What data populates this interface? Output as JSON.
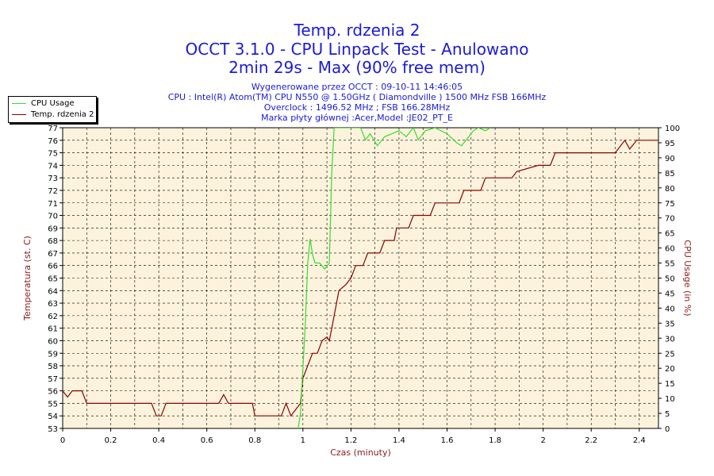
{
  "header": {
    "title1": "Temp. rdzenia 2",
    "title2": "OCCT 3.1.0 - CPU Linpack Test - Anulowano",
    "title3": "2min 29s - Max (90% free mem)",
    "info1": "Wygenerowane przez OCCT : 09-10-11 14:46:05",
    "info2": "CPU : Intel(R) Atom(TM) CPU N550 @ 1.50GHz ( Diamondville ) 1500 MHz FSB 166MHz",
    "info3": "Overclock : 1496.52 MHz ; FSB 166.28MHz",
    "info4": "Marka płyty głównej :Acer,Model :JE02_PT_E"
  },
  "legend": {
    "cpu_usage": "CPU Usage",
    "temp": "Temp. rdzenia 2"
  },
  "colors": {
    "plot_bg": "#fdf3dc",
    "cpu_line": "#33dd33",
    "temp_line": "#8b0000",
    "title": "#1b1bd6",
    "axis_label": "#8b1a1a",
    "grid": "#000000"
  },
  "chart_data": {
    "type": "line",
    "xlabel": "Czas (minuty)",
    "ylabel_left": "Temperatura (st. C)",
    "ylabel_right": "CPU Usage (in %)",
    "xlim": [
      0,
      2.48
    ],
    "ylim_left": [
      53,
      77
    ],
    "ylim_right": [
      0,
      100
    ],
    "x_ticks": [
      "0",
      "0.2",
      "0.4",
      "0.6",
      "0.8",
      "1",
      "1.2",
      "1.4",
      "1.6",
      "1.8",
      "2",
      "2.2",
      "2.4"
    ],
    "y_left_ticks": [
      "53",
      "54",
      "55",
      "56",
      "57",
      "58",
      "59",
      "60",
      "61",
      "62",
      "63",
      "64",
      "65",
      "66",
      "67",
      "68",
      "69",
      "70",
      "71",
      "72",
      "73",
      "74",
      "75",
      "76",
      "77"
    ],
    "y_right_ticks": [
      "0",
      "5",
      "10",
      "15",
      "20",
      "25",
      "30",
      "35",
      "40",
      "45",
      "50",
      "55",
      "60",
      "65",
      "70",
      "75",
      "80",
      "85",
      "90",
      "95",
      "100"
    ],
    "grid": true,
    "legend_position": "top-left",
    "series": [
      {
        "name": "Temp. rdzenia 2",
        "axis": "left",
        "points": [
          [
            0,
            56
          ],
          [
            0.02,
            55.5
          ],
          [
            0.04,
            56
          ],
          [
            0.08,
            56
          ],
          [
            0.1,
            55
          ],
          [
            0.37,
            55
          ],
          [
            0.39,
            54
          ],
          [
            0.41,
            54
          ],
          [
            0.43,
            55
          ],
          [
            0.65,
            55
          ],
          [
            0.67,
            55.7
          ],
          [
            0.69,
            55
          ],
          [
            0.79,
            55
          ],
          [
            0.8,
            54
          ],
          [
            0.91,
            54
          ],
          [
            0.93,
            55
          ],
          [
            0.95,
            54
          ],
          [
            0.97,
            54.5
          ],
          [
            0.99,
            55
          ],
          [
            1.0,
            57
          ],
          [
            1.02,
            58
          ],
          [
            1.04,
            59
          ],
          [
            1.06,
            59
          ],
          [
            1.08,
            60
          ],
          [
            1.1,
            60.3
          ],
          [
            1.11,
            60
          ],
          [
            1.12,
            61
          ],
          [
            1.14,
            63
          ],
          [
            1.15,
            64
          ],
          [
            1.18,
            64.5
          ],
          [
            1.2,
            65
          ],
          [
            1.22,
            66
          ],
          [
            1.25,
            66
          ],
          [
            1.27,
            67
          ],
          [
            1.32,
            67
          ],
          [
            1.34,
            68
          ],
          [
            1.38,
            68
          ],
          [
            1.39,
            69
          ],
          [
            1.42,
            69
          ],
          [
            1.44,
            69
          ],
          [
            1.46,
            70
          ],
          [
            1.53,
            70
          ],
          [
            1.55,
            71
          ],
          [
            1.65,
            71
          ],
          [
            1.67,
            72
          ],
          [
            1.74,
            72
          ],
          [
            1.76,
            73
          ],
          [
            1.87,
            73
          ],
          [
            1.89,
            73.5
          ],
          [
            1.98,
            74
          ],
          [
            2.03,
            74
          ],
          [
            2.05,
            75
          ],
          [
            2.3,
            75
          ],
          [
            2.34,
            76
          ],
          [
            2.36,
            75.3
          ],
          [
            2.39,
            76
          ],
          [
            2.48,
            76
          ]
        ]
      },
      {
        "name": "CPU Usage",
        "axis": "right",
        "points": [
          [
            0.98,
            0
          ],
          [
            0.99,
            5
          ],
          [
            1.0,
            20
          ],
          [
            1.01,
            35
          ],
          [
            1.02,
            55
          ],
          [
            1.03,
            63
          ],
          [
            1.04,
            58
          ],
          [
            1.05,
            55
          ],
          [
            1.07,
            55
          ],
          [
            1.09,
            53
          ],
          [
            1.11,
            55
          ],
          [
            1.12,
            85
          ],
          [
            1.13,
            100
          ],
          [
            1.24,
            100
          ],
          [
            1.26,
            96
          ],
          [
            1.28,
            98
          ],
          [
            1.31,
            94
          ],
          [
            1.34,
            97
          ],
          [
            1.4,
            99
          ],
          [
            1.43,
            97
          ],
          [
            1.46,
            100
          ],
          [
            1.48,
            96
          ],
          [
            1.51,
            99
          ],
          [
            1.55,
            100
          ],
          [
            1.6,
            98
          ],
          [
            1.64,
            95
          ],
          [
            1.66,
            94
          ],
          [
            1.68,
            96
          ],
          [
            1.71,
            99
          ],
          [
            1.73,
            100
          ],
          [
            1.76,
            99
          ],
          [
            1.78,
            100
          ]
        ]
      }
    ]
  }
}
